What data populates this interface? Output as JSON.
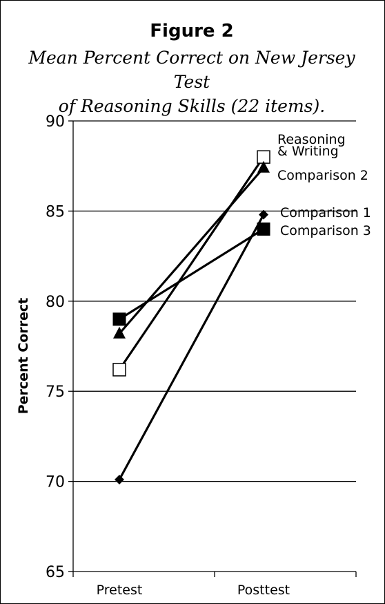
{
  "figure": {
    "title": "Figure 2",
    "subtitle_line1": "Mean Percent Correct on New Jersey Test",
    "subtitle_line2": "of Reasoning Skills (22 items)."
  },
  "chart_data": {
    "type": "line",
    "title": "Figure 2",
    "subtitle": "Mean Percent Correct on New Jersey Test of Reasoning Skills (22 items).",
    "xlabel": "",
    "ylabel": "Percent Correct",
    "categories": [
      "Pretest",
      "Posttest"
    ],
    "ylim": [
      65,
      90
    ],
    "yticks": [
      65,
      70,
      75,
      80,
      85,
      90
    ],
    "grid": true,
    "series": [
      {
        "name": "Reasoning & Writing",
        "label_lines": [
          "Reasoning",
          "& Writing"
        ],
        "marker": "open-square",
        "values": [
          76.2,
          88.0
        ],
        "color": "#000000"
      },
      {
        "name": "Comparison 2",
        "label_lines": [
          "Comparison 2"
        ],
        "marker": "triangle",
        "values": [
          78.2,
          87.4
        ],
        "color": "#000000"
      },
      {
        "name": "Comparison 1",
        "label_lines": [
          "Comparison 1"
        ],
        "marker": "diamond",
        "values": [
          70.1,
          84.8
        ],
        "color": "#000000"
      },
      {
        "name": "Comparison 3",
        "label_lines": [
          "Comparison 3"
        ],
        "marker": "filled-square",
        "values": [
          79.0,
          84.0
        ],
        "color": "#000000"
      }
    ]
  }
}
